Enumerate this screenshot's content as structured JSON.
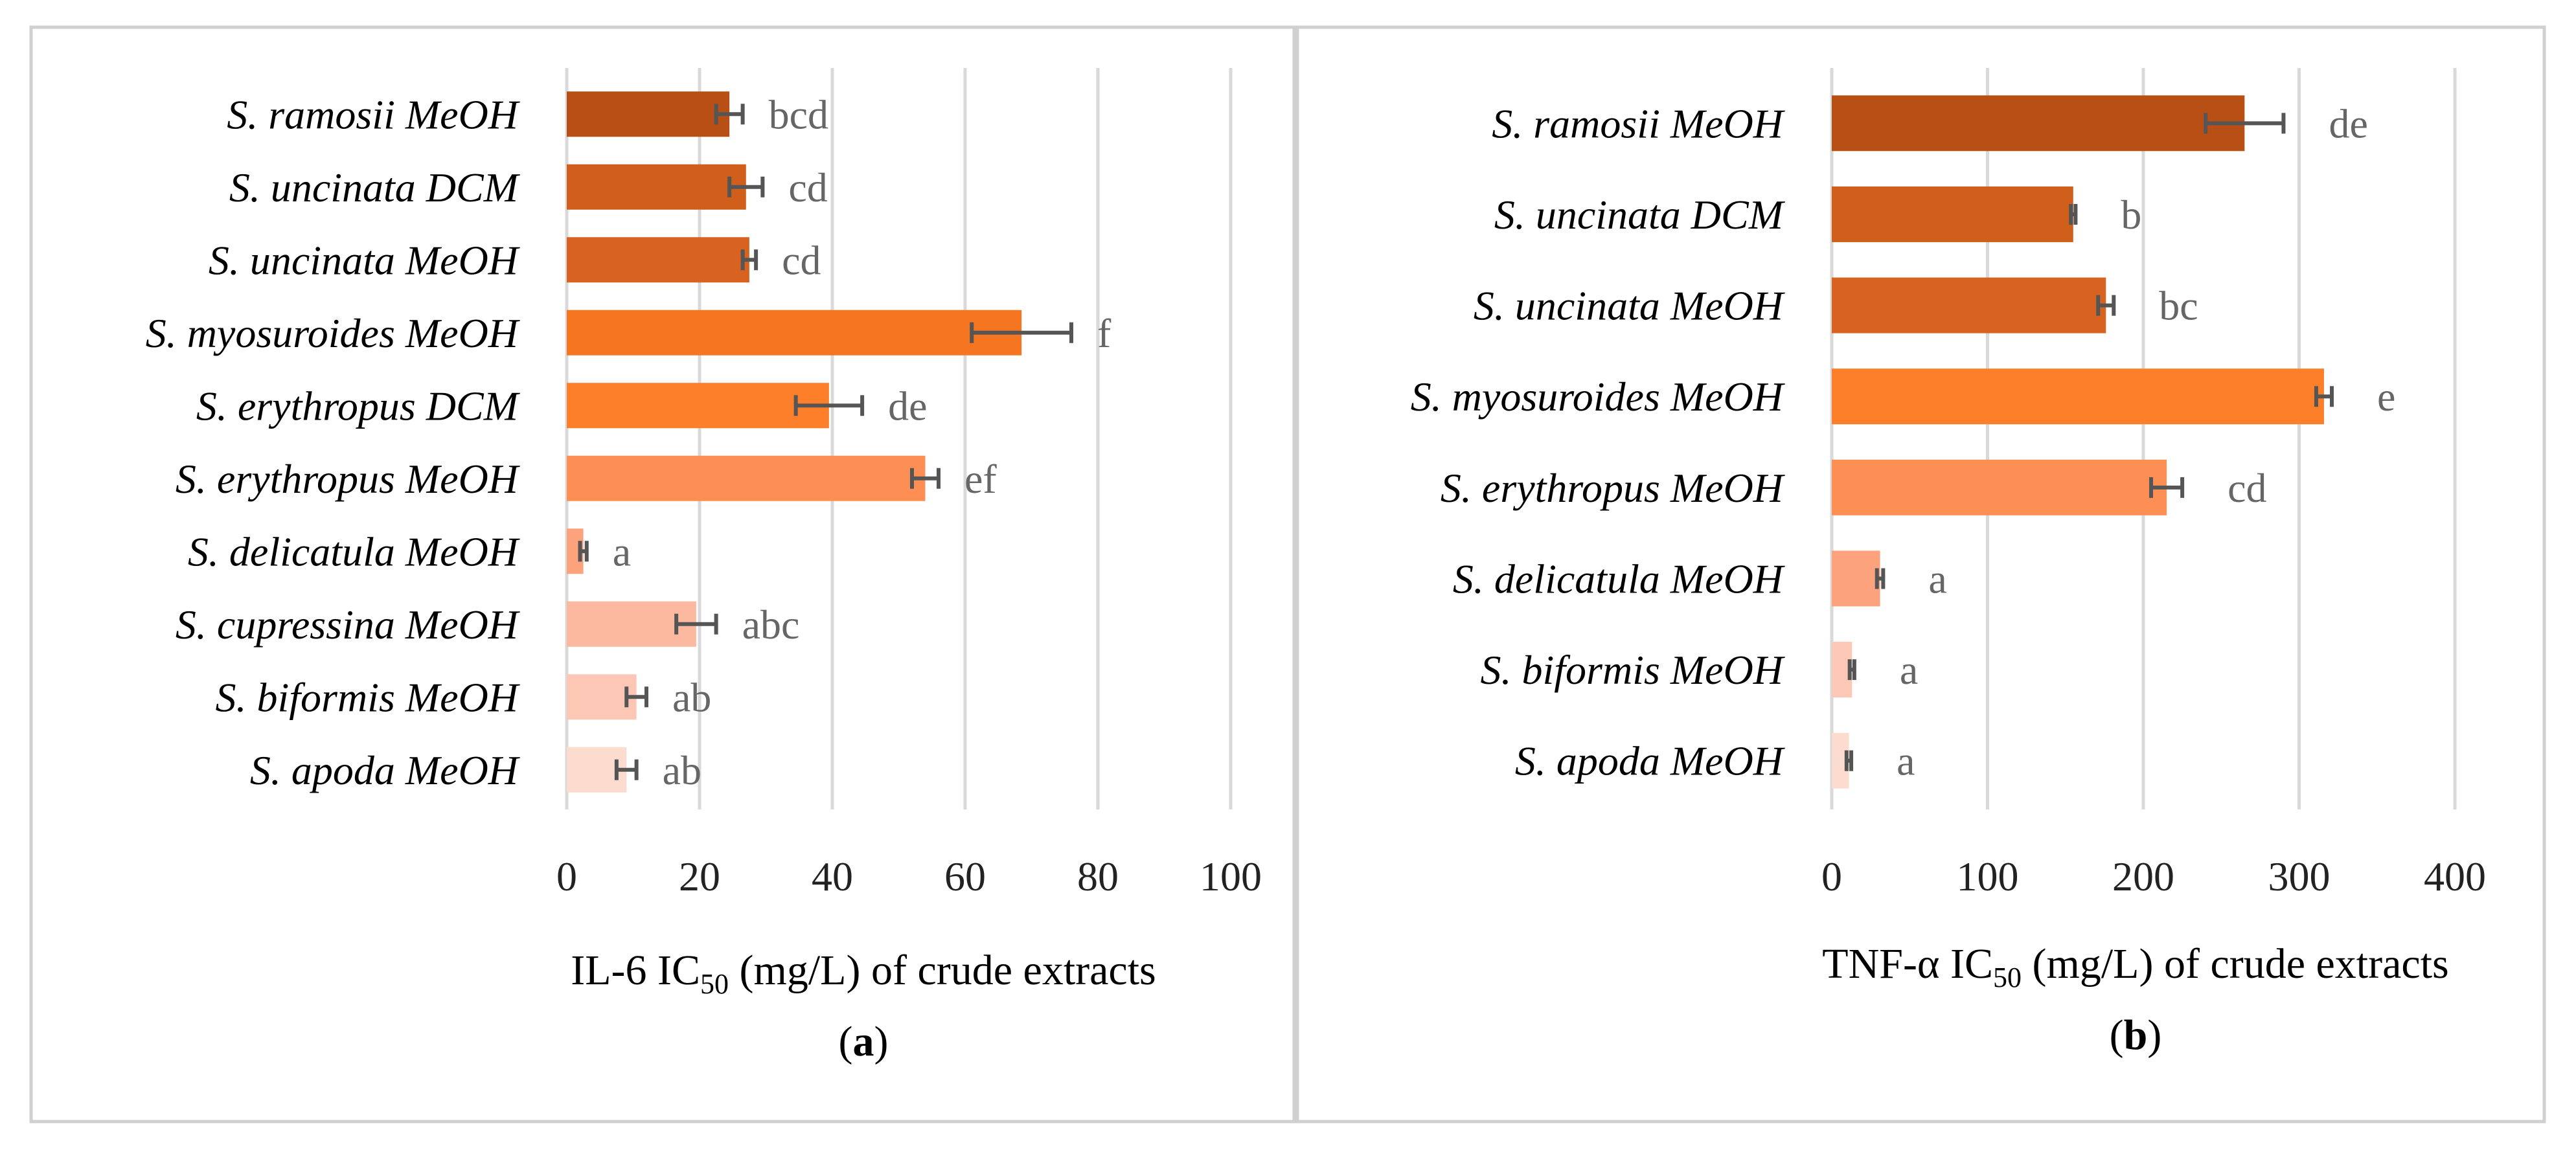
{
  "chart_data": [
    {
      "type": "bar",
      "orientation": "horizontal",
      "panel_label": "a",
      "xlabel_prefix": "IL-6 IC",
      "xlabel_sub": "50",
      "xlabel_suffix": " (mg/L) of crude extracts",
      "xlim": [
        0,
        100
      ],
      "xticks": [
        0,
        20,
        40,
        60,
        80,
        100
      ],
      "grid": true,
      "categories": [
        "S. ramosii MeOH",
        "S. uncinata DCM",
        "S. uncinata MeOH",
        "S. myosuroides MeOH",
        "S. erythropus DCM",
        "S. erythropus MeOH",
        "S. delicatula MeOH",
        "S. cupressina MeOH",
        "S. biformis MeOH",
        "S. apoda MeOH"
      ],
      "values": [
        24.5,
        27,
        27.5,
        68.5,
        39.5,
        54,
        2.5,
        19.5,
        10.5,
        9
      ],
      "errors": [
        2,
        2.5,
        1,
        7.5,
        5,
        2,
        0.5,
        3,
        1.5,
        1.5
      ],
      "significance": [
        "bcd",
        "cd",
        "cd",
        "f",
        "de",
        "ef",
        "a",
        "abc",
        "ab",
        "ab"
      ],
      "colors": [
        "#b85016",
        "#d05f1b",
        "#d86320",
        "#f57521",
        "#fd7f2a",
        "#fd8f55",
        "#fca27c",
        "#fdb8a0",
        "#fcc8b5",
        "#fcdccf"
      ]
    },
    {
      "type": "bar",
      "orientation": "horizontal",
      "panel_label": "b",
      "xlabel_prefix": "TNF-α IC",
      "xlabel_sub": "50",
      "xlabel_suffix": " (mg/L) of crude extracts",
      "xlim": [
        0,
        400
      ],
      "xticks": [
        0,
        100,
        200,
        300,
        400
      ],
      "grid": true,
      "categories": [
        "S. ramosii MeOH",
        "S. uncinata DCM",
        "S. uncinata MeOH",
        "S. myosuroides MeOH",
        "S. erythropus MeOH",
        "S. delicatula MeOH",
        "S. biformis MeOH",
        "S. apoda MeOH"
      ],
      "values": [
        265,
        155,
        176,
        316,
        215,
        31,
        13,
        11
      ],
      "errors": [
        25,
        1.5,
        5,
        5,
        10,
        2,
        1.5,
        1.5
      ],
      "significance": [
        "de",
        "b",
        "bc",
        "e",
        "cd",
        "a",
        "a",
        "a"
      ],
      "colors": [
        "#b85016",
        "#d05f1b",
        "#d86320",
        "#fd7f2a",
        "#fd8f55",
        "#fca27c",
        "#fcc8b5",
        "#fcdccf"
      ]
    }
  ]
}
